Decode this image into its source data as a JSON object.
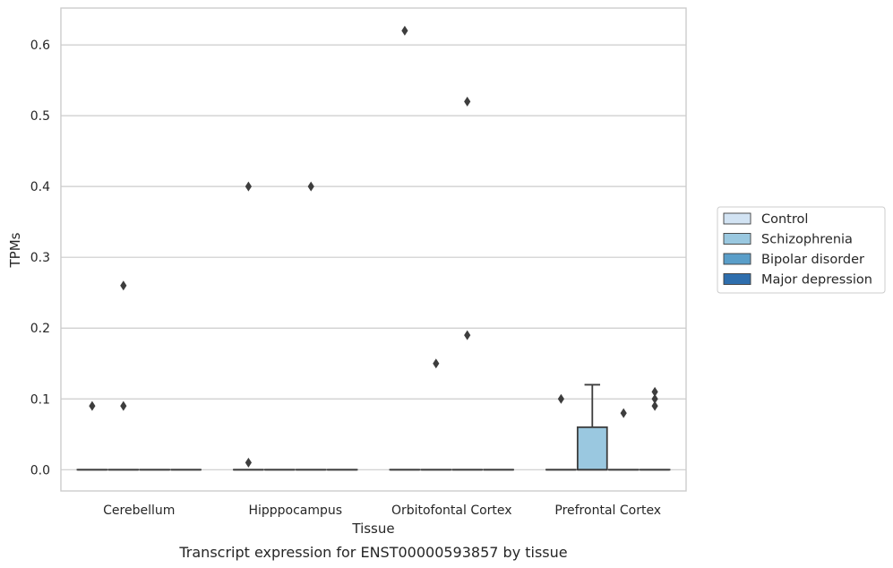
{
  "chart_data": {
    "type": "box",
    "caption": "Transcript expression for ENST00000593857 by tissue",
    "xlabel": "Tissue",
    "ylabel": "TPMs",
    "ylim": [
      -0.03,
      0.652
    ],
    "yticks": [
      0.0,
      0.1,
      0.2,
      0.3,
      0.4,
      0.5,
      0.6
    ],
    "ytick_labels": [
      "0.0",
      "0.1",
      "0.2",
      "0.3",
      "0.4",
      "0.5",
      "0.6"
    ],
    "grid": true,
    "legend_position": "right",
    "categories": [
      "Cerebellum",
      "Hipppocampus",
      "Orbitofontal Cortex",
      "Prefrontal Cortex"
    ],
    "series": [
      {
        "name": "Control",
        "color": "#d2e3f3",
        "boxes": [
          {
            "q1": 0,
            "median": 0,
            "q3": 0,
            "whisker_low": 0,
            "whisker_high": 0,
            "outliers": [
              0.09
            ]
          },
          {
            "q1": 0,
            "median": 0,
            "q3": 0,
            "whisker_low": 0,
            "whisker_high": 0,
            "outliers": [
              0.4,
              0.01
            ]
          },
          {
            "q1": 0,
            "median": 0,
            "q3": 0,
            "whisker_low": 0,
            "whisker_high": 0,
            "outliers": [
              0.62
            ]
          },
          {
            "q1": 0,
            "median": 0,
            "q3": 0,
            "whisker_low": 0,
            "whisker_high": 0,
            "outliers": [
              0.1
            ]
          }
        ]
      },
      {
        "name": "Schizophrenia",
        "color": "#9ac8e0",
        "boxes": [
          {
            "q1": 0,
            "median": 0,
            "q3": 0,
            "whisker_low": 0,
            "whisker_high": 0,
            "outliers": [
              0.26,
              0.09
            ]
          },
          {
            "q1": 0,
            "median": 0,
            "q3": 0,
            "whisker_low": 0,
            "whisker_high": 0,
            "outliers": []
          },
          {
            "q1": 0,
            "median": 0,
            "q3": 0,
            "whisker_low": 0,
            "whisker_high": 0,
            "outliers": [
              0.15
            ]
          },
          {
            "q1": 0,
            "median": 0,
            "q3": 0.06,
            "whisker_low": 0,
            "whisker_high": 0.12,
            "outliers": []
          }
        ]
      },
      {
        "name": "Bipolar disorder",
        "color": "#5a9ec9",
        "boxes": [
          {
            "q1": 0,
            "median": 0,
            "q3": 0,
            "whisker_low": 0,
            "whisker_high": 0,
            "outliers": []
          },
          {
            "q1": 0,
            "median": 0,
            "q3": 0,
            "whisker_low": 0,
            "whisker_high": 0,
            "outliers": [
              0.4
            ]
          },
          {
            "q1": 0,
            "median": 0,
            "q3": 0,
            "whisker_low": 0,
            "whisker_high": 0,
            "outliers": [
              0.52,
              0.19
            ]
          },
          {
            "q1": 0,
            "median": 0,
            "q3": 0,
            "whisker_low": 0,
            "whisker_high": 0,
            "outliers": [
              0.08
            ]
          }
        ]
      },
      {
        "name": "Major depression",
        "color": "#2e6ead",
        "boxes": [
          {
            "q1": 0,
            "median": 0,
            "q3": 0,
            "whisker_low": 0,
            "whisker_high": 0,
            "outliers": []
          },
          {
            "q1": 0,
            "median": 0,
            "q3": 0,
            "whisker_low": 0,
            "whisker_high": 0,
            "outliers": []
          },
          {
            "q1": 0,
            "median": 0,
            "q3": 0,
            "whisker_low": 0,
            "whisker_high": 0,
            "outliers": []
          },
          {
            "q1": 0,
            "median": 0,
            "q3": 0,
            "whisker_low": 0,
            "whisker_high": 0,
            "outliers": [
              0.11,
              0.1,
              0.09
            ]
          }
        ]
      }
    ]
  }
}
